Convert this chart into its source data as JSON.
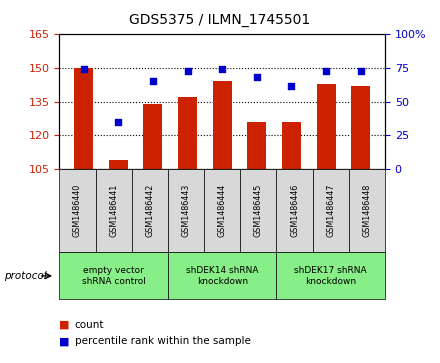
{
  "title": "GDS5375 / ILMN_1745501",
  "samples": [
    "GSM1486440",
    "GSM1486441",
    "GSM1486442",
    "GSM1486443",
    "GSM1486444",
    "GSM1486445",
    "GSM1486446",
    "GSM1486447",
    "GSM1486448"
  ],
  "counts": [
    150,
    109,
    134,
    137,
    144,
    126,
    126,
    143,
    142
  ],
  "percentiles": [
    74,
    35,
    65,
    73,
    74,
    68,
    62,
    73,
    73
  ],
  "ylim_left": [
    105,
    165
  ],
  "ylim_right": [
    0,
    100
  ],
  "yticks_left": [
    105,
    120,
    135,
    150,
    165
  ],
  "yticks_right": [
    0,
    25,
    50,
    75,
    100
  ],
  "bar_color": "#cc2200",
  "dot_color": "#0000cc",
  "protocols": [
    {
      "label": "empty vector\nshRNA control",
      "start": 0,
      "end": 3
    },
    {
      "label": "shDEK14 shRNA\nknockdown",
      "start": 3,
      "end": 6
    },
    {
      "label": "shDEK17 shRNA\nknockdown",
      "start": 6,
      "end": 9
    }
  ],
  "protocol_box_color": "#88ee88",
  "sample_box_color": "#d8d8d8",
  "legend_count_label": "count",
  "legend_pct_label": "percentile rank within the sample",
  "protocol_label": "protocol"
}
